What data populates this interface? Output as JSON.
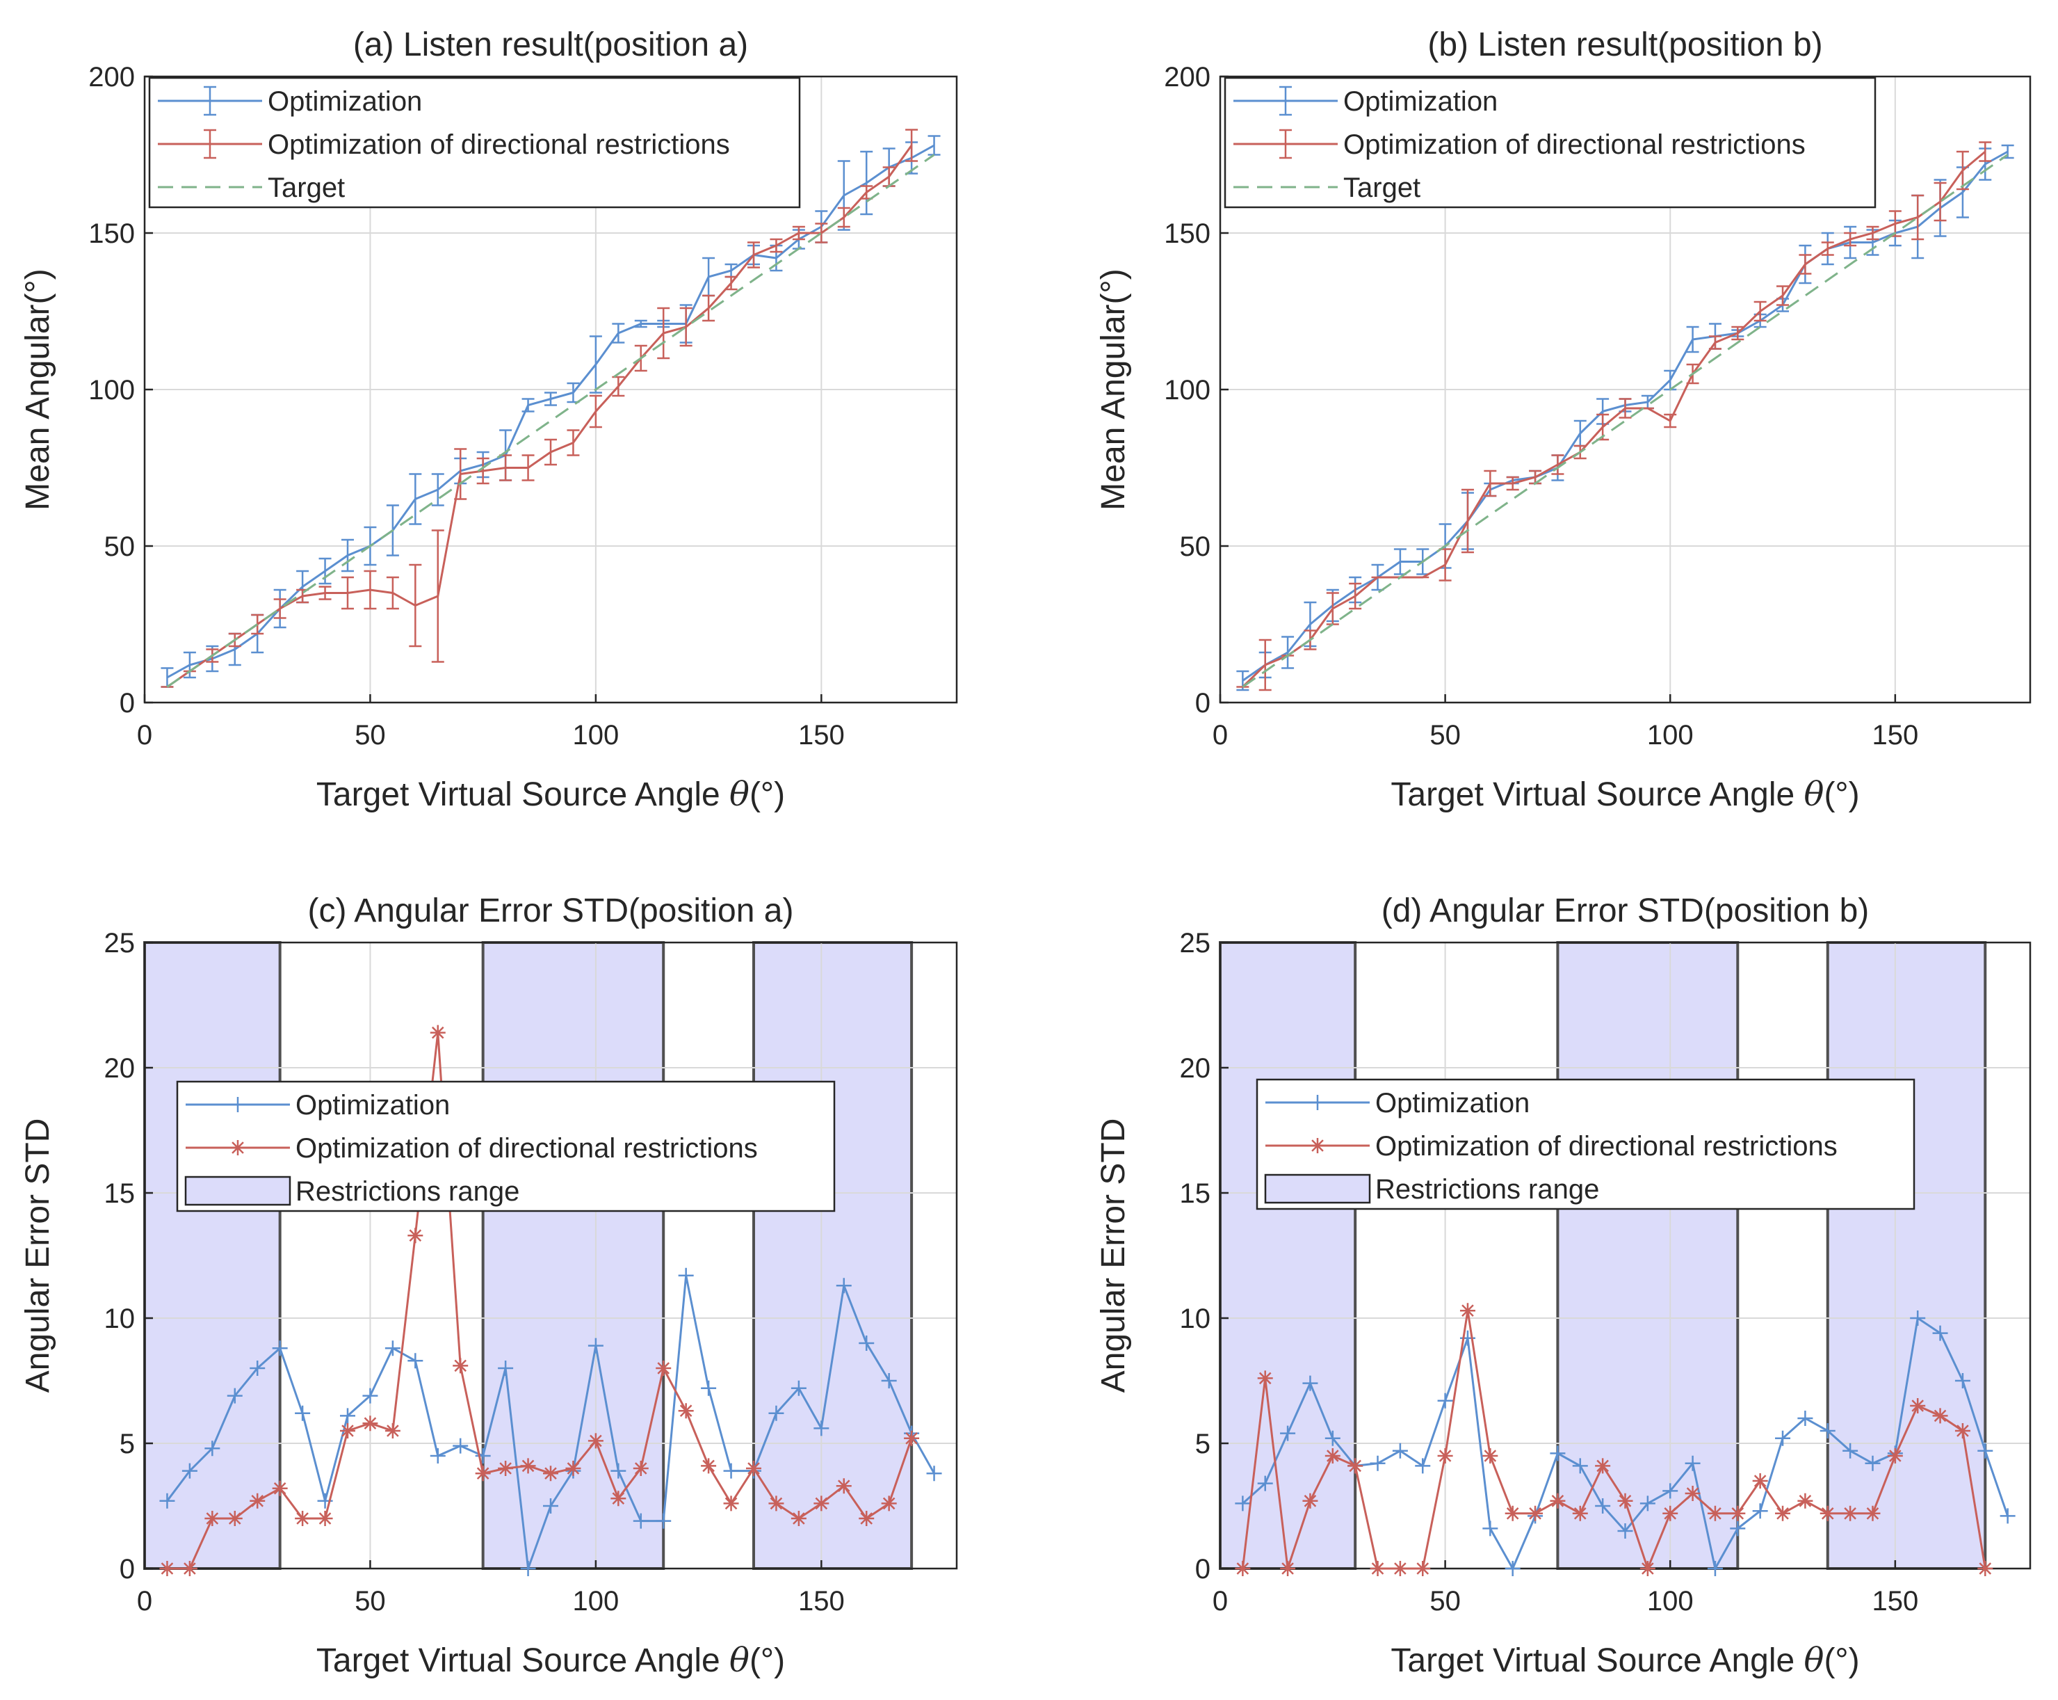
{
  "colors": {
    "optimization": "#5b8fd0",
    "restricted": "#c8605a",
    "target": "#7fb38a",
    "restriction_fill": "#dcdcfa",
    "restriction_edge": "#505050"
  },
  "axis_text": {
    "xlabel_pre": "Target Virtual Source Angle ",
    "theta": "θ",
    "xlabel_post": "(°)"
  },
  "chart_data": [
    {
      "type": "line",
      "panel": "a",
      "title": "(a) Listen result(position a)",
      "xlabel": "Target Virtual Source Angle θ(°)",
      "ylabel": "Mean Angular(°)",
      "xlim": [
        0,
        180
      ],
      "ylim": [
        0,
        200
      ],
      "xticks": [
        0,
        50,
        100,
        150
      ],
      "xtick_labels": [
        "0",
        "50",
        "100",
        "150"
      ],
      "yticks": [
        0,
        50,
        100,
        150,
        200
      ],
      "ytick_labels": [
        "0",
        "50",
        "100",
        "150",
        "200"
      ],
      "grid": true,
      "legend_position": "top-left",
      "legend": [
        "Optimization",
        "Optimization of directional restrictions",
        "Target"
      ],
      "x": [
        5,
        10,
        15,
        20,
        25,
        30,
        35,
        40,
        45,
        50,
        55,
        60,
        65,
        70,
        75,
        80,
        85,
        90,
        95,
        100,
        105,
        110,
        115,
        120,
        125,
        130,
        135,
        140,
        145,
        150,
        155,
        160,
        165,
        170,
        175
      ],
      "series": [
        {
          "name": "Optimization",
          "values": [
            8,
            12,
            14,
            17,
            22,
            30,
            37,
            42,
            47,
            50,
            55,
            65,
            68,
            74,
            76,
            79,
            95,
            97,
            99,
            108,
            118,
            121,
            121,
            121,
            136,
            138,
            143,
            142,
            148,
            152,
            162,
            166,
            171,
            174,
            178
          ],
          "errors": [
            3,
            4,
            4,
            5,
            6,
            6,
            5,
            4,
            5,
            6,
            8,
            8,
            5,
            4,
            4,
            8,
            2,
            2,
            3,
            9,
            3,
            1,
            1,
            6,
            6,
            2,
            3,
            4,
            3,
            5,
            11,
            10,
            6,
            5,
            3
          ]
        },
        {
          "name": "Optimization of directional restrictions",
          "values": [
            5,
            10,
            15,
            20,
            25,
            30,
            34,
            35,
            35,
            36,
            35,
            31,
            34,
            73,
            74,
            75,
            75,
            80,
            83,
            93,
            101,
            110,
            118,
            120,
            126,
            134,
            143,
            146,
            150,
            150,
            155,
            163,
            168,
            178,
            null
          ],
          "errors": [
            0,
            0,
            2,
            2,
            3,
            3,
            2,
            2,
            5,
            6,
            5,
            13,
            21,
            8,
            4,
            4,
            4,
            4,
            4,
            5,
            3,
            4,
            8,
            6,
            4,
            2,
            4,
            2,
            2,
            3,
            3,
            2,
            3,
            5,
            0
          ]
        },
        {
          "name": "Target",
          "values": [
            5,
            10,
            15,
            20,
            25,
            30,
            35,
            40,
            45,
            50,
            55,
            60,
            65,
            70,
            75,
            80,
            85,
            90,
            95,
            100,
            105,
            110,
            115,
            120,
            125,
            130,
            135,
            140,
            145,
            150,
            155,
            160,
            165,
            170,
            175
          ],
          "style": "dashed"
        }
      ]
    },
    {
      "type": "line",
      "panel": "b",
      "title": "(b) Listen result(position b)",
      "xlabel": "Target Virtual Source Angle θ(°)",
      "ylabel": "Mean Angular(°)",
      "xlim": [
        0,
        180
      ],
      "ylim": [
        0,
        200
      ],
      "xticks": [
        0,
        50,
        100,
        150
      ],
      "xtick_labels": [
        "0",
        "50",
        "100",
        "150"
      ],
      "yticks": [
        0,
        50,
        100,
        150,
        200
      ],
      "ytick_labels": [
        "0",
        "50",
        "100",
        "150",
        "200"
      ],
      "grid": true,
      "legend_position": "top-left",
      "legend": [
        "Optimization",
        "Optimization of directional restrictions",
        "Target"
      ],
      "x": [
        5,
        10,
        15,
        20,
        25,
        30,
        35,
        40,
        45,
        50,
        55,
        60,
        65,
        70,
        75,
        80,
        85,
        90,
        95,
        100,
        105,
        110,
        115,
        120,
        125,
        130,
        135,
        140,
        145,
        150,
        155,
        160,
        165,
        170,
        175
      ],
      "series": [
        {
          "name": "Optimization",
          "values": [
            7,
            12,
            16,
            25,
            31,
            36,
            40,
            45,
            45,
            50,
            58,
            68,
            71,
            72,
            75,
            86,
            93,
            95,
            96,
            103,
            116,
            117,
            118,
            122,
            127,
            140,
            145,
            147,
            147,
            150,
            152,
            158,
            163,
            172,
            176
          ],
          "errors": [
            3,
            4,
            5,
            7,
            5,
            4,
            4,
            4,
            4,
            7,
            9,
            2,
            1,
            2,
            4,
            4,
            4,
            2,
            2,
            3,
            4,
            4,
            1,
            2,
            2,
            6,
            5,
            5,
            4,
            4,
            10,
            9,
            8,
            5,
            2
          ]
        },
        {
          "name": "Optimization of directional restrictions",
          "values": [
            5,
            12,
            15,
            20,
            30,
            34,
            40,
            40,
            40,
            44,
            58,
            70,
            70,
            72,
            76,
            80,
            88,
            94,
            94,
            90,
            105,
            115,
            118,
            125,
            130,
            140,
            145,
            148,
            150,
            153,
            155,
            160,
            170,
            176,
            null
          ],
          "errors": [
            0,
            8,
            0,
            3,
            5,
            4,
            0,
            0,
            0,
            5,
            10,
            4,
            2,
            2,
            3,
            2,
            4,
            3,
            0,
            2,
            3,
            2,
            2,
            3,
            3,
            3,
            2,
            2,
            2,
            4,
            7,
            6,
            6,
            3,
            0
          ]
        },
        {
          "name": "Target",
          "values": [
            5,
            10,
            15,
            20,
            25,
            30,
            35,
            40,
            45,
            50,
            55,
            60,
            65,
            70,
            75,
            80,
            85,
            90,
            95,
            100,
            105,
            110,
            115,
            120,
            125,
            130,
            135,
            140,
            145,
            150,
            155,
            160,
            165,
            170,
            175
          ],
          "style": "dashed"
        }
      ]
    },
    {
      "type": "line",
      "panel": "c",
      "title": "(c) Angular Error STD(position a)",
      "xlabel": "Target Virtual Source Angle θ(°)",
      "ylabel": "Angular Error STD",
      "xlim": [
        0,
        180
      ],
      "ylim": [
        0,
        25
      ],
      "xticks": [
        0,
        50,
        100,
        150
      ],
      "xtick_labels": [
        "0",
        "50",
        "100",
        "150"
      ],
      "yticks": [
        0,
        5,
        10,
        15,
        20,
        25
      ],
      "ytick_labels": [
        "0",
        "5",
        "10",
        "15",
        "20",
        "25"
      ],
      "grid": true,
      "legend_position": "center-left",
      "legend": [
        "Optimization",
        "Optimization of directional restrictions",
        "Restrictions range"
      ],
      "restriction_ranges": [
        [
          0,
          30
        ],
        [
          75,
          115
        ],
        [
          135,
          170
        ]
      ],
      "x": [
        5,
        10,
        15,
        20,
        25,
        30,
        35,
        40,
        45,
        50,
        55,
        60,
        65,
        70,
        75,
        80,
        85,
        90,
        95,
        100,
        105,
        110,
        115,
        120,
        125,
        130,
        135,
        140,
        145,
        150,
        155,
        160,
        165,
        170,
        175
      ],
      "series": [
        {
          "name": "Optimization",
          "values": [
            2.7,
            3.9,
            4.8,
            6.9,
            8.0,
            8.8,
            6.2,
            2.7,
            6.1,
            6.9,
            8.8,
            8.3,
            4.5,
            4.9,
            4.5,
            8.0,
            0,
            2.5,
            3.9,
            8.9,
            3.9,
            1.9,
            1.9,
            11.7,
            7.2,
            3.9,
            3.9,
            6.2,
            7.2,
            5.6,
            11.3,
            9.0,
            7.5,
            5.4,
            3.8
          ]
        },
        {
          "name": "Optimization of directional restrictions",
          "values": [
            0,
            0,
            2.0,
            2.0,
            2.7,
            3.2,
            2.0,
            2.0,
            5.5,
            5.8,
            5.5,
            13.3,
            21.4,
            8.1,
            3.8,
            4.0,
            4.1,
            3.8,
            4.0,
            5.1,
            2.8,
            4.0,
            8.0,
            6.3,
            4.1,
            2.6,
            4.0,
            2.6,
            2.0,
            2.6,
            3.3,
            2.0,
            2.6,
            5.2,
            null
          ]
        }
      ]
    },
    {
      "type": "line",
      "panel": "d",
      "title": "(d) Angular Error STD(position b)",
      "xlabel": "Target Virtual Source Angle θ(°)",
      "ylabel": "Angular Error STD",
      "xlim": [
        0,
        180
      ],
      "ylim": [
        0,
        25
      ],
      "xticks": [
        0,
        50,
        100,
        150
      ],
      "xtick_labels": [
        "0",
        "50",
        "100",
        "150"
      ],
      "yticks": [
        0,
        5,
        10,
        15,
        20,
        25
      ],
      "ytick_labels": [
        "0",
        "5",
        "10",
        "15",
        "20",
        "25"
      ],
      "grid": true,
      "legend_position": "center-left",
      "legend": [
        "Optimization",
        "Optimization of directional restrictions",
        "Restrictions range"
      ],
      "restriction_ranges": [
        [
          0,
          30
        ],
        [
          75,
          115
        ],
        [
          135,
          170
        ]
      ],
      "x": [
        5,
        10,
        15,
        20,
        25,
        30,
        35,
        40,
        45,
        50,
        55,
        60,
        65,
        70,
        75,
        80,
        85,
        90,
        95,
        100,
        105,
        110,
        115,
        120,
        125,
        130,
        135,
        140,
        145,
        150,
        155,
        160,
        165,
        170,
        175
      ],
      "series": [
        {
          "name": "Optimization",
          "values": [
            2.6,
            3.4,
            5.4,
            7.4,
            5.2,
            4.1,
            4.2,
            4.7,
            4.1,
            6.7,
            9.2,
            1.6,
            0,
            2.1,
            4.6,
            4.1,
            2.5,
            1.5,
            2.6,
            3.1,
            4.2,
            0,
            1.6,
            2.3,
            5.2,
            6.0,
            5.5,
            4.7,
            4.2,
            4.6,
            10.0,
            9.4,
            7.5,
            4.7,
            2.1
          ]
        },
        {
          "name": "Optimization of directional restrictions",
          "values": [
            0,
            7.6,
            0,
            2.7,
            4.5,
            4.1,
            0,
            0,
            0,
            4.5,
            10.3,
            4.5,
            2.2,
            2.2,
            2.7,
            2.2,
            4.1,
            2.7,
            0,
            2.2,
            3.0,
            2.2,
            2.2,
            3.5,
            2.2,
            2.7,
            2.2,
            2.2,
            2.2,
            4.5,
            6.5,
            6.1,
            5.5,
            0,
            null
          ]
        }
      ]
    }
  ]
}
